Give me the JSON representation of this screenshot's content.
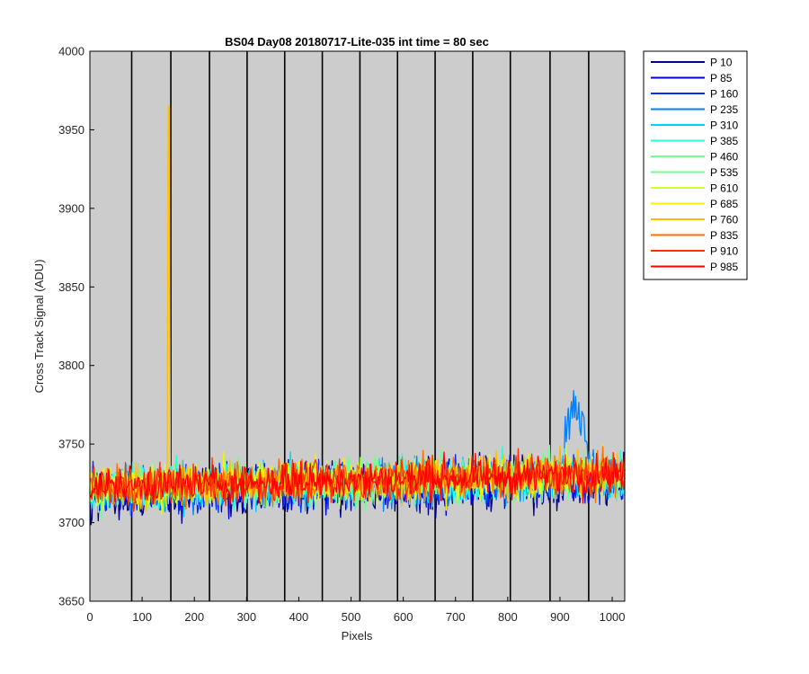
{
  "chart_data": {
    "type": "line",
    "title": "BS04 Day08 20180717-Lite-035 int time = 80 sec",
    "xlabel": "Pixels",
    "ylabel": "Cross Track Signal (ADU)",
    "xlim": [
      0,
      1024
    ],
    "ylim": [
      3650,
      4000
    ],
    "xticks": [
      0,
      100,
      200,
      300,
      400,
      500,
      600,
      700,
      800,
      900,
      1000
    ],
    "yticks": [
      3650,
      3700,
      3750,
      3800,
      3850,
      3900,
      3950,
      4000
    ],
    "grid": false,
    "background_color": "#cccccc",
    "vertical_markers_x": [
      80,
      155,
      229,
      301,
      373,
      445,
      517,
      589,
      661,
      733,
      805,
      881,
      955
    ],
    "legend_position": "outside-right",
    "series": [
      {
        "name": "P 10",
        "color": "#00008f",
        "base": 3718,
        "noise": 14
      },
      {
        "name": "P 85",
        "color": "#0000df",
        "base": 3719,
        "noise": 14
      },
      {
        "name": "P 160",
        "color": "#0030ff",
        "base": 3720,
        "noise": 13
      },
      {
        "name": "P 235",
        "color": "#0080ff",
        "base": 3721,
        "noise": 13,
        "bump": {
          "center": 928,
          "width": 22,
          "height": 50
        }
      },
      {
        "name": "P 310",
        "color": "#00cfff",
        "base": 3721,
        "noise": 13
      },
      {
        "name": "P 385",
        "color": "#20ffdf",
        "base": 3722,
        "noise": 13
      },
      {
        "name": "P 460",
        "color": "#70ff8f",
        "base": 3722,
        "noise": 13
      },
      {
        "name": "P 535",
        "color": "#70ff8f",
        "base": 3722,
        "noise": 12
      },
      {
        "name": "P 610",
        "color": "#cfff30",
        "base": 3723,
        "noise": 12
      },
      {
        "name": "P 685",
        "color": "#ffef00",
        "base": 3723,
        "noise": 12
      },
      {
        "name": "P 760",
        "color": "#ffbf00",
        "base": 3723,
        "noise": 12,
        "spike": {
          "x": 151,
          "y": 3965
        }
      },
      {
        "name": "P 835",
        "color": "#ff7000",
        "base": 3723,
        "noise": 12
      },
      {
        "name": "P 910",
        "color": "#ff3000",
        "base": 3723,
        "noise": 12
      },
      {
        "name": "P 985",
        "color": "#ff0000",
        "base": 3723,
        "noise": 11
      }
    ]
  }
}
